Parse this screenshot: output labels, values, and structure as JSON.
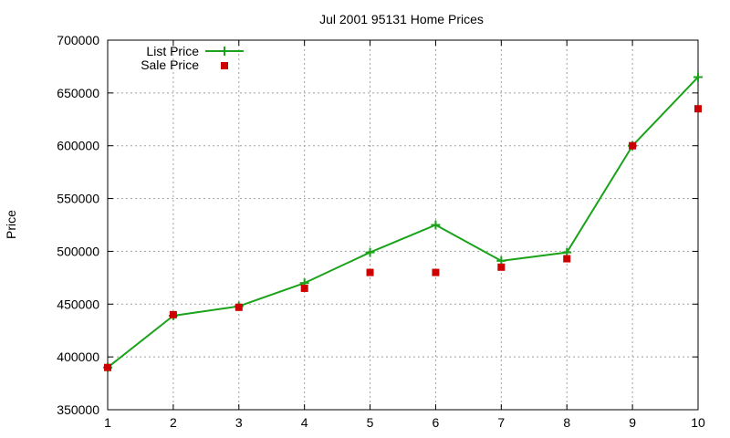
{
  "chart_data": {
    "type": "line",
    "title": "Jul 2001 95131 Home Prices",
    "xlabel": "",
    "ylabel": "Price",
    "xlim": [
      1,
      10
    ],
    "ylim": [
      350000,
      700000
    ],
    "x": [
      1,
      2,
      3,
      4,
      5,
      6,
      7,
      8,
      9,
      10
    ],
    "x_ticks": [
      "1",
      "2",
      "3",
      "4",
      "5",
      "6",
      "7",
      "8",
      "9",
      "10"
    ],
    "y_ticks": [
      "350000",
      "400000",
      "450000",
      "500000",
      "550000",
      "600000",
      "650000",
      "700000"
    ],
    "grid": true,
    "legend_position": "top-left",
    "series": [
      {
        "name": "List Price",
        "style": "linespoints",
        "marker": "plus",
        "color": "#1aa31a",
        "values": [
          390000,
          439000,
          448000,
          470000,
          499000,
          525000,
          491000,
          499000,
          600000,
          665000
        ]
      },
      {
        "name": "Sale Price",
        "style": "points",
        "marker": "square",
        "color": "#cc0000",
        "values": [
          390000,
          440000,
          447000,
          465000,
          480000,
          480000,
          485000,
          493000,
          600000,
          635000
        ]
      }
    ]
  }
}
